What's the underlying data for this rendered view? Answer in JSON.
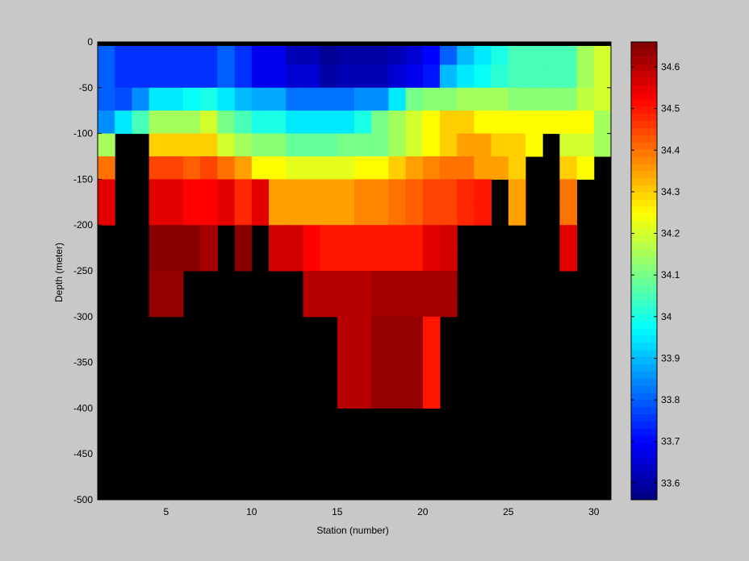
{
  "chart_data": {
    "type": "heatmap",
    "title": "",
    "xlabel": "Station (number)",
    "ylabel": "Depth (meter)",
    "xlim": [
      1,
      31
    ],
    "ylim": [
      -500,
      0
    ],
    "x_ticks": [
      5,
      10,
      15,
      20,
      25,
      30
    ],
    "y_ticks": [
      0,
      -50,
      -100,
      -150,
      -200,
      -250,
      -300,
      -350,
      -400,
      -450,
      -500
    ],
    "colorbar": {
      "colormap": "jet",
      "clim": [
        33.56,
        34.66
      ],
      "ticks": [
        33.6,
        33.7,
        33.8,
        33.9,
        34,
        34.1,
        34.2,
        34.3,
        34.4,
        34.5,
        34.6
      ],
      "tick_labels": [
        "33.6",
        "33.7",
        "33.8",
        "33.9",
        "34",
        "34.1",
        "34.2",
        "34.3",
        "34.4",
        "34.5",
        "34.6"
      ]
    },
    "missing_color": "#000000",
    "stations": [
      1,
      2,
      3,
      4,
      5,
      6,
      7,
      8,
      9,
      10,
      11,
      12,
      13,
      14,
      15,
      16,
      17,
      18,
      19,
      20,
      21,
      22,
      23,
      24,
      25,
      26,
      27,
      28,
      29,
      30
    ],
    "depths": [
      0,
      -25,
      -50,
      -75,
      -100,
      -125,
      -150,
      -175,
      -200,
      -225,
      -250,
      -275,
      -300,
      -325,
      -350,
      -375,
      -400,
      -425,
      -450,
      -475,
      -500
    ],
    "salinity_rows": [
      [
        33.8,
        33.75,
        33.75,
        33.75,
        33.75,
        33.75,
        33.75,
        33.8,
        33.75,
        33.68,
        33.68,
        33.62,
        33.62,
        33.58,
        33.6,
        33.6,
        33.6,
        33.62,
        33.65,
        33.7,
        33.8,
        33.9,
        33.95,
        34.0,
        34.05,
        34.05,
        34.05,
        34.05,
        34.15,
        34.2
      ],
      [
        33.8,
        33.75,
        33.75,
        33.75,
        33.75,
        33.75,
        33.75,
        33.8,
        33.75,
        33.68,
        33.68,
        33.65,
        33.65,
        33.6,
        33.62,
        33.62,
        33.62,
        33.65,
        33.68,
        33.72,
        33.9,
        33.95,
        33.98,
        34.02,
        34.05,
        34.05,
        34.05,
        34.05,
        34.15,
        34.2
      ],
      [
        33.8,
        33.78,
        33.85,
        33.95,
        33.95,
        33.98,
        34.0,
        33.95,
        33.9,
        33.88,
        33.88,
        33.82,
        33.82,
        33.82,
        33.82,
        33.85,
        33.85,
        33.95,
        34.1,
        34.12,
        34.12,
        34.15,
        34.15,
        34.15,
        34.12,
        34.12,
        34.12,
        34.12,
        34.18,
        34.2
      ],
      [
        33.85,
        33.95,
        34.05,
        34.15,
        34.15,
        34.15,
        34.2,
        34.1,
        34.05,
        34.0,
        34.0,
        33.95,
        33.95,
        33.95,
        33.95,
        34.0,
        34.1,
        34.15,
        34.2,
        34.25,
        34.3,
        34.3,
        34.25,
        34.25,
        34.25,
        34.25,
        34.25,
        34.25,
        34.25,
        34.15
      ],
      [
        34.15,
        null,
        null,
        34.3,
        34.3,
        34.3,
        34.3,
        34.2,
        34.15,
        34.12,
        34.12,
        34.08,
        34.08,
        34.08,
        34.1,
        34.1,
        34.1,
        34.15,
        34.2,
        34.25,
        34.3,
        34.35,
        34.35,
        34.3,
        34.3,
        34.25,
        null,
        34.2,
        34.2,
        34.15
      ],
      [
        34.4,
        null,
        null,
        34.45,
        34.45,
        34.42,
        34.45,
        34.4,
        34.35,
        34.25,
        34.25,
        34.22,
        34.22,
        34.22,
        34.22,
        34.25,
        34.25,
        34.3,
        34.35,
        34.38,
        34.4,
        34.4,
        34.35,
        34.35,
        34.3,
        null,
        null,
        34.3,
        34.25,
        null
      ],
      [
        34.55,
        null,
        null,
        34.55,
        34.55,
        34.52,
        34.52,
        34.55,
        34.48,
        34.55,
        34.35,
        34.35,
        34.35,
        34.35,
        34.35,
        34.38,
        34.38,
        34.4,
        34.42,
        34.45,
        34.45,
        34.48,
        34.5,
        null,
        34.35,
        null,
        null,
        34.4,
        null,
        null
      ],
      [
        34.55,
        null,
        null,
        34.55,
        34.55,
        34.52,
        34.52,
        34.55,
        34.48,
        34.55,
        34.35,
        34.35,
        34.35,
        34.35,
        34.35,
        34.38,
        34.38,
        34.4,
        34.42,
        34.45,
        34.45,
        34.48,
        34.5,
        null,
        34.35,
        null,
        null,
        34.4,
        null,
        null
      ],
      [
        null,
        null,
        null,
        34.65,
        34.65,
        34.65,
        34.62,
        null,
        34.65,
        null,
        34.57,
        34.57,
        34.52,
        34.5,
        34.5,
        34.5,
        34.5,
        34.5,
        34.5,
        34.55,
        34.57,
        null,
        null,
        null,
        null,
        null,
        null,
        34.55,
        null,
        null
      ],
      [
        null,
        null,
        null,
        34.65,
        34.65,
        34.65,
        34.62,
        null,
        34.65,
        null,
        34.57,
        34.57,
        34.52,
        34.5,
        34.5,
        34.5,
        34.5,
        34.5,
        34.5,
        34.55,
        34.57,
        null,
        null,
        null,
        null,
        null,
        null,
        34.55,
        null,
        null
      ],
      [
        null,
        null,
        null,
        34.64,
        34.64,
        null,
        null,
        null,
        null,
        null,
        null,
        null,
        34.6,
        34.6,
        34.6,
        34.6,
        34.62,
        34.62,
        34.62,
        34.62,
        34.62,
        null,
        null,
        null,
        null,
        null,
        null,
        null,
        null,
        null
      ],
      [
        null,
        null,
        null,
        34.64,
        34.64,
        null,
        null,
        null,
        null,
        null,
        null,
        null,
        34.6,
        34.6,
        34.6,
        34.6,
        34.62,
        34.62,
        34.62,
        34.62,
        34.62,
        null,
        null,
        null,
        null,
        null,
        null,
        null,
        null,
        null
      ],
      [
        null,
        null,
        null,
        null,
        null,
        null,
        null,
        null,
        null,
        null,
        null,
        null,
        null,
        null,
        34.6,
        34.6,
        34.64,
        34.64,
        34.64,
        34.5,
        null,
        null,
        null,
        null,
        null,
        null,
        null,
        null,
        null,
        null
      ],
      [
        null,
        null,
        null,
        null,
        null,
        null,
        null,
        null,
        null,
        null,
        null,
        null,
        null,
        null,
        34.6,
        34.6,
        34.64,
        34.64,
        34.64,
        34.5,
        null,
        null,
        null,
        null,
        null,
        null,
        null,
        null,
        null,
        null
      ],
      [
        null,
        null,
        null,
        null,
        null,
        null,
        null,
        null,
        null,
        null,
        null,
        null,
        null,
        null,
        34.6,
        34.6,
        34.64,
        34.64,
        34.64,
        34.5,
        null,
        null,
        null,
        null,
        null,
        null,
        null,
        null,
        null,
        null
      ],
      [
        null,
        null,
        null,
        null,
        null,
        null,
        null,
        null,
        null,
        null,
        null,
        null,
        null,
        null,
        34.6,
        34.6,
        34.64,
        34.64,
        34.64,
        34.5,
        null,
        null,
        null,
        null,
        null,
        null,
        null,
        null,
        null,
        null
      ],
      [
        null,
        null,
        null,
        null,
        null,
        null,
        null,
        null,
        null,
        null,
        null,
        null,
        null,
        null,
        null,
        null,
        null,
        null,
        null,
        null,
        null,
        null,
        null,
        null,
        null,
        null,
        null,
        null,
        null,
        null
      ],
      [
        null,
        null,
        null,
        null,
        null,
        null,
        null,
        null,
        null,
        null,
        null,
        null,
        null,
        null,
        null,
        null,
        null,
        null,
        null,
        null,
        null,
        null,
        null,
        null,
        null,
        null,
        null,
        null,
        null,
        null
      ],
      [
        null,
        null,
        null,
        null,
        null,
        null,
        null,
        null,
        null,
        null,
        null,
        null,
        null,
        null,
        null,
        null,
        null,
        null,
        null,
        null,
        null,
        null,
        null,
        null,
        null,
        null,
        null,
        null,
        null,
        null
      ],
      [
        null,
        null,
        null,
        null,
        null,
        null,
        null,
        null,
        null,
        null,
        null,
        null,
        null,
        null,
        null,
        null,
        null,
        null,
        null,
        null,
        null,
        null,
        null,
        null,
        null,
        null,
        null,
        null,
        null,
        null
      ]
    ]
  }
}
